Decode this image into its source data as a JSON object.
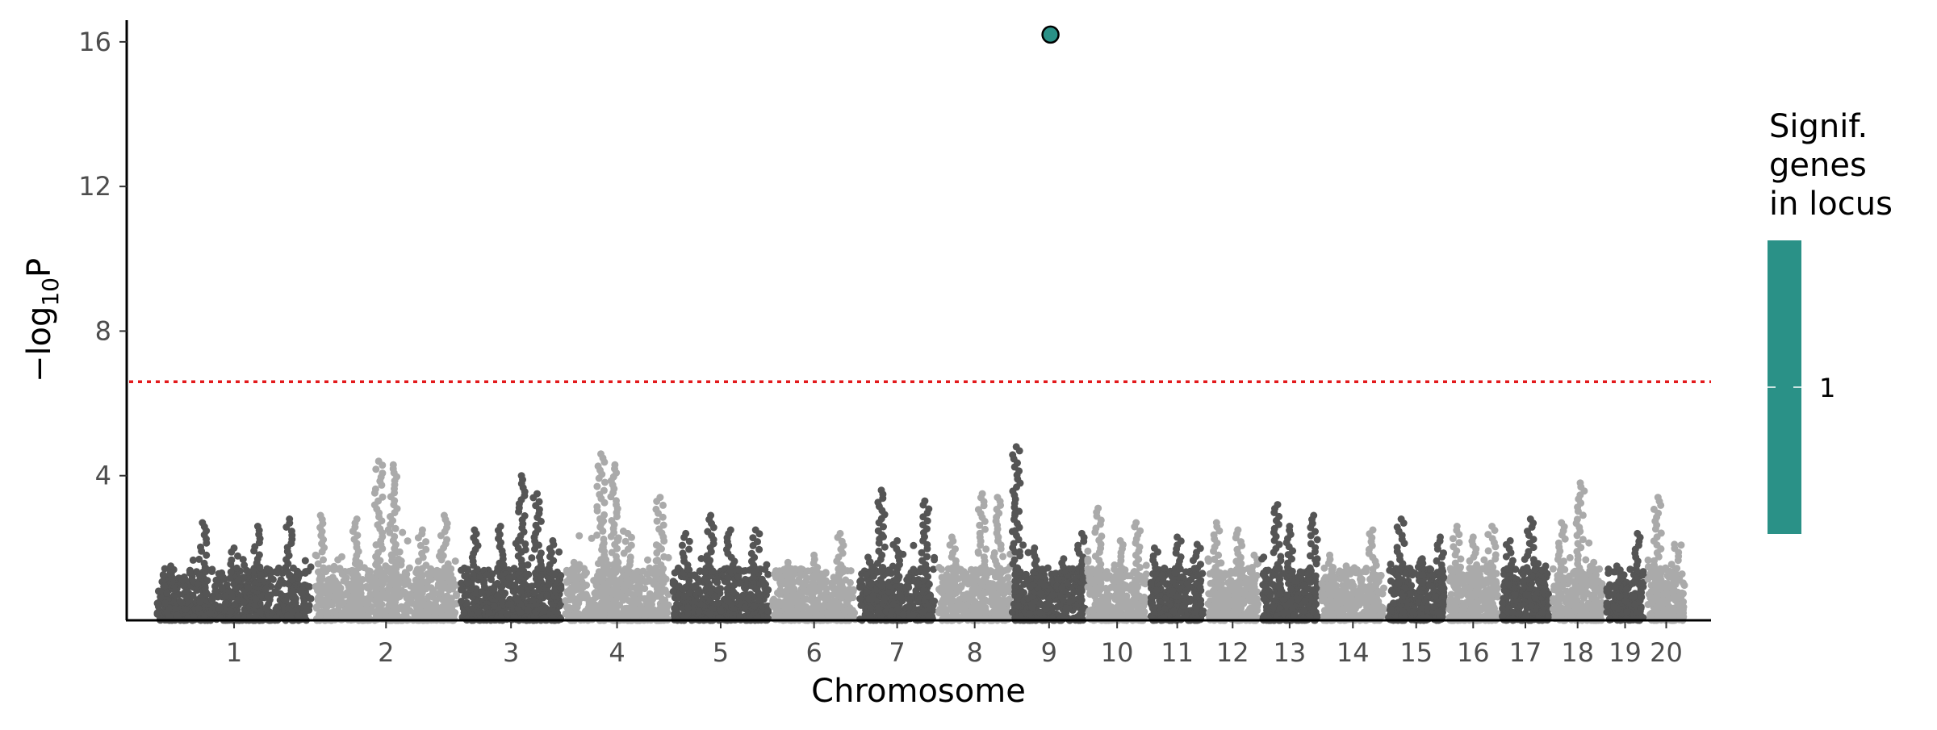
{
  "chart_data": {
    "type": "scatter",
    "subtype": "manhattan",
    "title": "",
    "xlabel": "Chromosome",
    "ylabel_main": "−log",
    "ylabel_sub": "10",
    "ylabel_tail": "P",
    "ylim": [
      0,
      16.6
    ],
    "yticks": [
      4,
      8,
      12,
      16
    ],
    "grid": false,
    "threshold": {
      "value": 6.6,
      "color": "#e31a1c",
      "style": "dotted"
    },
    "colors": {
      "odd_chrom": "#555555",
      "even_chrom": "#aaaaaa",
      "highlight": "#2a9187"
    },
    "chromosomes": [
      {
        "label": "1",
        "length": 1.0,
        "peaks": [
          [
            0.1,
            1.5
          ],
          [
            0.3,
            2.7
          ],
          [
            0.5,
            2.0
          ],
          [
            0.65,
            2.6
          ],
          [
            0.85,
            2.8
          ]
        ]
      },
      {
        "label": "2",
        "length": 0.92,
        "peaks": [
          [
            0.05,
            2.9
          ],
          [
            0.3,
            2.8
          ],
          [
            0.45,
            4.4
          ],
          [
            0.55,
            4.3
          ],
          [
            0.75,
            2.5
          ],
          [
            0.9,
            2.9
          ]
        ]
      },
      {
        "label": "3",
        "length": 0.66,
        "peaks": [
          [
            0.15,
            2.5
          ],
          [
            0.4,
            2.6
          ],
          [
            0.6,
            4.0
          ],
          [
            0.75,
            3.5
          ],
          [
            0.9,
            2.2
          ]
        ]
      },
      {
        "label": "4",
        "length": 0.68,
        "peaks": [
          [
            0.1,
            1.6
          ],
          [
            0.35,
            4.6
          ],
          [
            0.48,
            4.3
          ],
          [
            0.6,
            2.4
          ],
          [
            0.9,
            3.4
          ]
        ]
      },
      {
        "label": "5",
        "length": 0.63,
        "peaks": [
          [
            0.15,
            2.4
          ],
          [
            0.4,
            2.9
          ],
          [
            0.6,
            2.5
          ],
          [
            0.85,
            2.5
          ]
        ]
      },
      {
        "label": "6",
        "length": 0.55,
        "peaks": [
          [
            0.2,
            1.6
          ],
          [
            0.5,
            1.8
          ],
          [
            0.8,
            2.4
          ]
        ]
      },
      {
        "label": "7",
        "length": 0.5,
        "peaks": [
          [
            0.15,
            1.6
          ],
          [
            0.3,
            3.6
          ],
          [
            0.5,
            2.2
          ],
          [
            0.85,
            3.3
          ]
        ]
      },
      {
        "label": "8",
        "length": 0.48,
        "peaks": [
          [
            0.2,
            2.3
          ],
          [
            0.6,
            3.5
          ],
          [
            0.8,
            3.4
          ]
        ]
      },
      {
        "label": "9",
        "length": 0.46,
        "peaks": [
          [
            0.05,
            4.8
          ],
          [
            0.3,
            2.0
          ],
          [
            0.7,
            1.7
          ],
          [
            0.95,
            2.4
          ]
        ]
      },
      {
        "label": "10",
        "length": 0.4,
        "peaks": [
          [
            0.2,
            3.1
          ],
          [
            0.55,
            2.2
          ],
          [
            0.8,
            2.7
          ]
        ]
      },
      {
        "label": "11",
        "length": 0.36,
        "peaks": [
          [
            0.1,
            2.0
          ],
          [
            0.5,
            2.3
          ],
          [
            0.85,
            2.1
          ]
        ]
      },
      {
        "label": "12",
        "length": 0.34,
        "peaks": [
          [
            0.2,
            2.7
          ],
          [
            0.6,
            2.5
          ],
          [
            0.9,
            1.8
          ]
        ]
      },
      {
        "label": "13",
        "length": 0.38,
        "peaks": [
          [
            0.3,
            3.2
          ],
          [
            0.5,
            2.6
          ],
          [
            0.9,
            2.9
          ]
        ]
      },
      {
        "label": "14",
        "length": 0.42,
        "peaks": [
          [
            0.15,
            1.8
          ],
          [
            0.4,
            1.5
          ],
          [
            0.8,
            2.5
          ]
        ]
      },
      {
        "label": "15",
        "length": 0.38,
        "peaks": [
          [
            0.25,
            2.8
          ],
          [
            0.6,
            1.7
          ],
          [
            0.9,
            2.3
          ]
        ]
      },
      {
        "label": "16",
        "length": 0.34,
        "peaks": [
          [
            0.2,
            2.6
          ],
          [
            0.5,
            2.3
          ],
          [
            0.85,
            2.6
          ]
        ]
      },
      {
        "label": "17",
        "length": 0.32,
        "peaks": [
          [
            0.2,
            2.2
          ],
          [
            0.6,
            2.8
          ],
          [
            0.9,
            1.5
          ]
        ]
      },
      {
        "label": "18",
        "length": 0.34,
        "peaks": [
          [
            0.2,
            2.7
          ],
          [
            0.55,
            3.8
          ],
          [
            0.8,
            1.6
          ]
        ]
      },
      {
        "label": "19",
        "length": 0.26,
        "peaks": [
          [
            0.3,
            1.5
          ],
          [
            0.8,
            2.4
          ]
        ]
      },
      {
        "label": "20",
        "length": 0.26,
        "peaks": [
          [
            0.3,
            3.4
          ],
          [
            0.7,
            2.1
          ]
        ]
      }
    ],
    "highlight_points": [
      {
        "chromosome": "9",
        "pos_frac": 0.52,
        "y": 16.2
      }
    ],
    "legend": {
      "title_lines": [
        "Signif.",
        "genes",
        "in locus"
      ],
      "label": "1",
      "color": "#2a9187",
      "placement": "right"
    }
  }
}
